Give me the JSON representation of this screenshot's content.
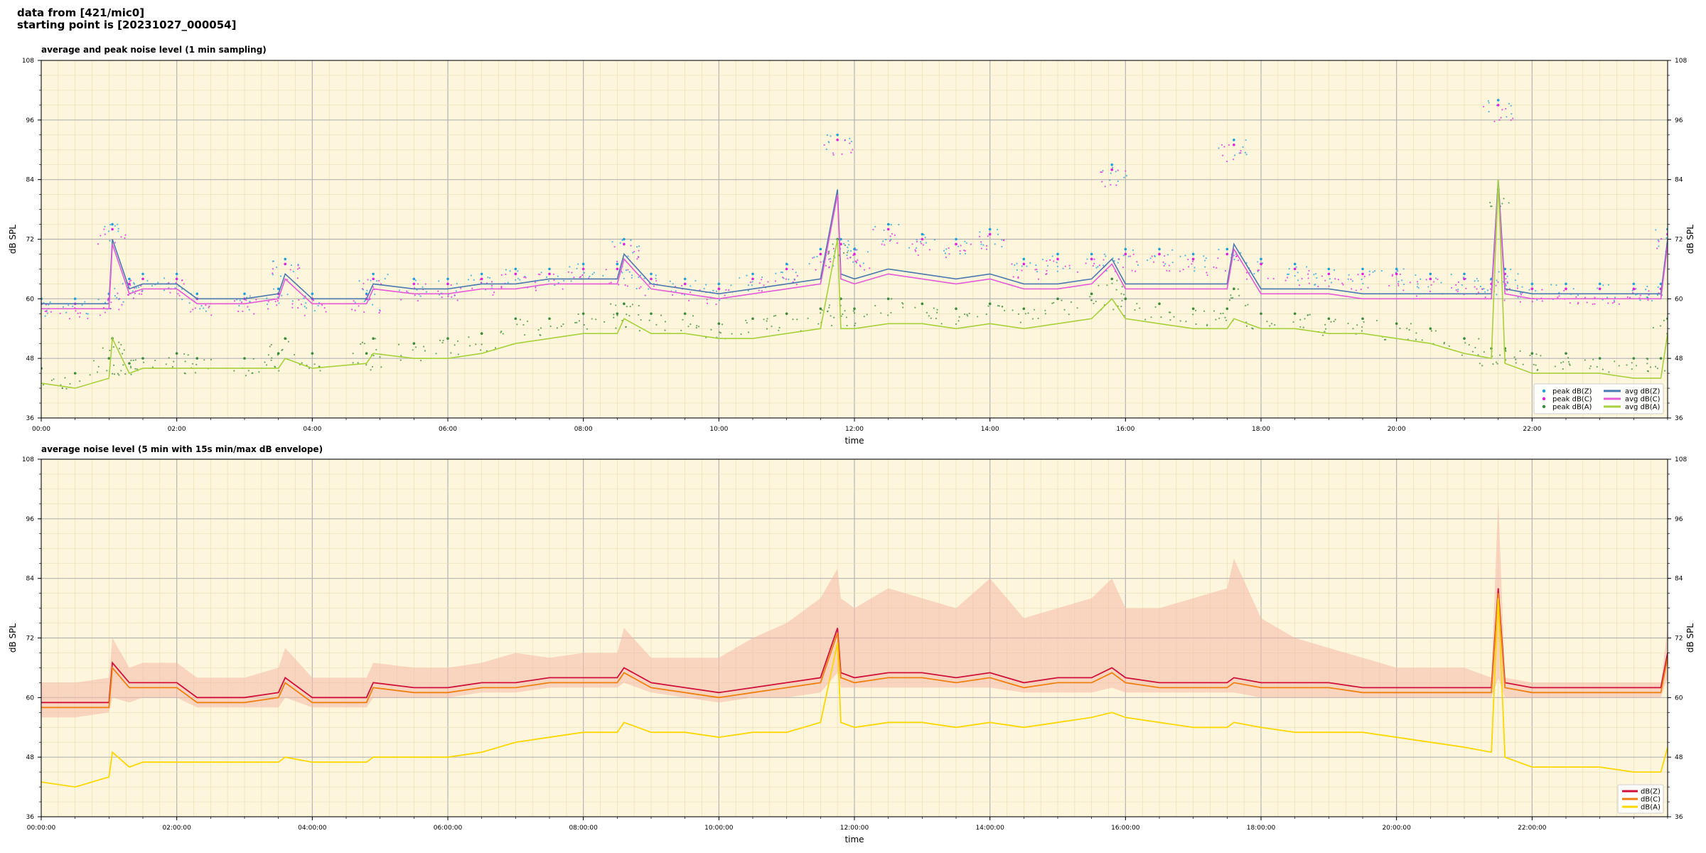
{
  "header": {
    "line1": "data from [421/mic0]",
    "line2": "starting point is [20231027_000054]"
  },
  "colors": {
    "plot_bg": "#fdf6dc",
    "grid_major": "#b4b4b4",
    "grid_minor": "#e8e0b8",
    "peak_z": "#1f9fd8",
    "peak_c": "#e020e0",
    "peak_a": "#3a8a3a",
    "avg_z": "#4a78b0",
    "avg_c": "#e45ad8",
    "avg_a": "#a6d13a",
    "env_fill": "#f5b8a8",
    "dbz": "#d0103a",
    "dbc": "#f08010",
    "dba": "#ffd700"
  },
  "chart_data": [
    {
      "type": "line",
      "title": "average and peak noise level (1 min sampling)",
      "xlabel": "time",
      "ylabel": "dB SPL",
      "ylim": [
        36,
        108
      ],
      "yticks": [
        36,
        48,
        60,
        72,
        84,
        96,
        108
      ],
      "xlim_hours": [
        0,
        24
      ],
      "xtick_labels": [
        "00:00",
        "02:00",
        "04:00",
        "06:00",
        "08:00",
        "10:00",
        "12:00",
        "14:00",
        "16:00",
        "18:00",
        "20:00",
        "22:00"
      ],
      "grid": true,
      "legend_position": "bottom-right",
      "x": [
        0,
        0.5,
        1.0,
        1.05,
        1.3,
        1.5,
        2.0,
        2.3,
        3.0,
        3.5,
        3.6,
        4.0,
        4.8,
        4.9,
        5.5,
        6.0,
        6.5,
        7.0,
        7.5,
        8.0,
        8.5,
        8.6,
        9.0,
        9.5,
        10.0,
        10.5,
        11.0,
        11.5,
        11.75,
        11.8,
        12.0,
        12.5,
        13.0,
        13.5,
        14.0,
        14.5,
        15.0,
        15.5,
        15.8,
        16.0,
        16.5,
        17.0,
        17.5,
        17.6,
        18.0,
        18.5,
        19.0,
        19.5,
        20.0,
        20.5,
        21.0,
        21.4,
        21.5,
        21.6,
        22.0,
        22.5,
        23.0,
        23.5,
        23.9,
        24.0
      ],
      "series": [
        {
          "name": "peak dB(Z)",
          "style": "points",
          "values": [
            60,
            60,
            61,
            75,
            64,
            65,
            65,
            61,
            61,
            62,
            68,
            61,
            61,
            65,
            64,
            64,
            65,
            66,
            66,
            67,
            67,
            72,
            65,
            64,
            63,
            65,
            67,
            70,
            93,
            72,
            70,
            75,
            73,
            72,
            74,
            68,
            69,
            69,
            87,
            70,
            70,
            69,
            70,
            92,
            68,
            67,
            66,
            66,
            66,
            65,
            65,
            64,
            100,
            66,
            63,
            63,
            63,
            63,
            63,
            74
          ]
        },
        {
          "name": "peak dB(C)",
          "style": "points",
          "values": [
            59,
            59,
            60,
            74,
            63,
            64,
            64,
            60,
            60,
            61,
            67,
            60,
            60,
            64,
            63,
            63,
            64,
            65,
            65,
            66,
            66,
            71,
            64,
            63,
            62,
            64,
            66,
            69,
            92,
            71,
            69,
            74,
            72,
            71,
            73,
            67,
            68,
            68,
            86,
            69,
            69,
            68,
            69,
            91,
            67,
            66,
            65,
            65,
            65,
            64,
            64,
            63,
            99,
            65,
            62,
            62,
            62,
            62,
            62,
            73
          ]
        },
        {
          "name": "peak dB(A)",
          "style": "points",
          "values": [
            46,
            45,
            48,
            52,
            47,
            48,
            49,
            48,
            48,
            49,
            52,
            49,
            49,
            52,
            51,
            52,
            53,
            56,
            56,
            57,
            57,
            59,
            57,
            57,
            55,
            56,
            57,
            58,
            72,
            60,
            58,
            60,
            59,
            58,
            59,
            58,
            60,
            61,
            64,
            60,
            59,
            58,
            58,
            62,
            57,
            57,
            56,
            56,
            55,
            54,
            52,
            50,
            82,
            50,
            49,
            49,
            48,
            48,
            48,
            56
          ]
        },
        {
          "name": "avg dB(Z)",
          "style": "line",
          "values": [
            59,
            59,
            59,
            72,
            62,
            63,
            63,
            60,
            60,
            61,
            65,
            60,
            60,
            63,
            62,
            62,
            63,
            63,
            64,
            64,
            64,
            69,
            63,
            62,
            61,
            62,
            63,
            64,
            82,
            65,
            64,
            66,
            65,
            64,
            65,
            63,
            63,
            64,
            68,
            63,
            63,
            63,
            63,
            71,
            62,
            62,
            62,
            61,
            61,
            61,
            61,
            61,
            84,
            62,
            61,
            61,
            61,
            61,
            61,
            72
          ]
        },
        {
          "name": "avg dB(C)",
          "style": "line",
          "values": [
            58,
            58,
            58,
            71,
            61,
            62,
            62,
            59,
            59,
            60,
            64,
            59,
            59,
            62,
            61,
            61,
            62,
            62,
            63,
            63,
            63,
            68,
            62,
            61,
            60,
            61,
            62,
            63,
            81,
            64,
            63,
            65,
            64,
            63,
            64,
            62,
            62,
            63,
            67,
            62,
            62,
            62,
            62,
            70,
            61,
            61,
            61,
            60,
            60,
            60,
            60,
            60,
            83,
            61,
            60,
            60,
            60,
            60,
            60,
            71
          ]
        },
        {
          "name": "avg dB(A)",
          "style": "line",
          "values": [
            43,
            42,
            44,
            52,
            45,
            46,
            46,
            46,
            46,
            46,
            48,
            46,
            47,
            49,
            48,
            48,
            49,
            51,
            52,
            53,
            53,
            56,
            53,
            53,
            52,
            52,
            53,
            54,
            72,
            54,
            54,
            55,
            55,
            54,
            55,
            54,
            55,
            56,
            60,
            56,
            55,
            54,
            54,
            56,
            54,
            54,
            53,
            53,
            52,
            51,
            49,
            48,
            84,
            47,
            45,
            45,
            45,
            44,
            44,
            53
          ]
        }
      ]
    },
    {
      "type": "line",
      "title": "average noise level (5 min with 15s min/max dB envelope)",
      "xlabel": "time",
      "ylabel": "dB SPL",
      "ylim": [
        36,
        108
      ],
      "yticks": [
        36,
        48,
        60,
        72,
        84,
        96,
        108
      ],
      "xlim_hours": [
        0,
        24
      ],
      "xtick_labels": [
        "00:00:00",
        "02:00:00",
        "04:00:00",
        "06:00:00",
        "08:00:00",
        "10:00:00",
        "12:00:00",
        "14:00:00",
        "16:00:00",
        "18:00:00",
        "20:00:00",
        "22:00:00"
      ],
      "grid": true,
      "legend_position": "bottom-right",
      "x": [
        0,
        0.5,
        1.0,
        1.05,
        1.3,
        1.5,
        2.0,
        2.3,
        3.0,
        3.5,
        3.6,
        4.0,
        4.8,
        4.9,
        5.5,
        6.0,
        6.5,
        7.0,
        7.5,
        8.0,
        8.5,
        8.6,
        9.0,
        9.5,
        10.0,
        10.5,
        11.0,
        11.5,
        11.75,
        11.8,
        12.0,
        12.5,
        13.0,
        13.5,
        14.0,
        14.5,
        15.0,
        15.5,
        15.8,
        16.0,
        16.5,
        17.0,
        17.5,
        17.6,
        18.0,
        18.5,
        19.0,
        19.5,
        20.0,
        20.5,
        21.0,
        21.4,
        21.5,
        21.6,
        22.0,
        22.5,
        23.0,
        23.5,
        23.9,
        24.0
      ],
      "envelope": {
        "min": [
          56,
          56,
          57,
          60,
          59,
          60,
          60,
          58,
          58,
          58,
          60,
          58,
          58,
          60,
          60,
          60,
          61,
          61,
          62,
          62,
          62,
          63,
          61,
          60,
          59,
          60,
          60,
          61,
          65,
          62,
          62,
          62,
          62,
          62,
          62,
          61,
          61,
          61,
          62,
          61,
          61,
          61,
          61,
          61,
          60,
          60,
          60,
          60,
          60,
          60,
          60,
          60,
          64,
          60,
          60,
          60,
          60,
          60,
          60,
          64
        ],
        "max": [
          63,
          63,
          64,
          72,
          66,
          67,
          67,
          64,
          64,
          66,
          70,
          64,
          64,
          67,
          66,
          66,
          67,
          69,
          68,
          69,
          69,
          74,
          68,
          68,
          68,
          72,
          75,
          80,
          86,
          80,
          78,
          82,
          80,
          78,
          84,
          76,
          78,
          80,
          84,
          78,
          78,
          80,
          82,
          88,
          76,
          72,
          70,
          68,
          66,
          66,
          66,
          64,
          100,
          64,
          63,
          63,
          63,
          63,
          63,
          74
        ]
      },
      "series": [
        {
          "name": "dB(Z)",
          "values": [
            59,
            59,
            59,
            67,
            63,
            63,
            63,
            60,
            60,
            61,
            64,
            60,
            60,
            63,
            62,
            62,
            63,
            63,
            64,
            64,
            64,
            66,
            63,
            62,
            61,
            62,
            63,
            64,
            74,
            65,
            64,
            65,
            65,
            64,
            65,
            63,
            64,
            64,
            66,
            64,
            63,
            63,
            63,
            64,
            63,
            63,
            63,
            62,
            62,
            62,
            62,
            62,
            82,
            63,
            62,
            62,
            62,
            62,
            62,
            69
          ]
        },
        {
          "name": "dB(C)",
          "values": [
            58,
            58,
            58,
            66,
            62,
            62,
            62,
            59,
            59,
            60,
            63,
            59,
            59,
            62,
            61,
            61,
            62,
            62,
            63,
            63,
            63,
            65,
            62,
            61,
            60,
            61,
            62,
            63,
            73,
            64,
            63,
            64,
            64,
            63,
            64,
            62,
            63,
            63,
            65,
            63,
            62,
            62,
            62,
            63,
            62,
            62,
            62,
            61,
            61,
            61,
            61,
            61,
            81,
            62,
            61,
            61,
            61,
            61,
            61,
            68
          ]
        },
        {
          "name": "dB(A)",
          "values": [
            43,
            42,
            44,
            49,
            46,
            47,
            47,
            47,
            47,
            47,
            48,
            47,
            47,
            48,
            48,
            48,
            49,
            51,
            52,
            53,
            53,
            55,
            53,
            53,
            52,
            53,
            53,
            55,
            71,
            55,
            54,
            55,
            55,
            54,
            55,
            54,
            55,
            56,
            57,
            56,
            55,
            54,
            54,
            55,
            54,
            53,
            53,
            53,
            52,
            51,
            50,
            49,
            80,
            48,
            46,
            46,
            46,
            45,
            45,
            50
          ]
        }
      ]
    }
  ]
}
